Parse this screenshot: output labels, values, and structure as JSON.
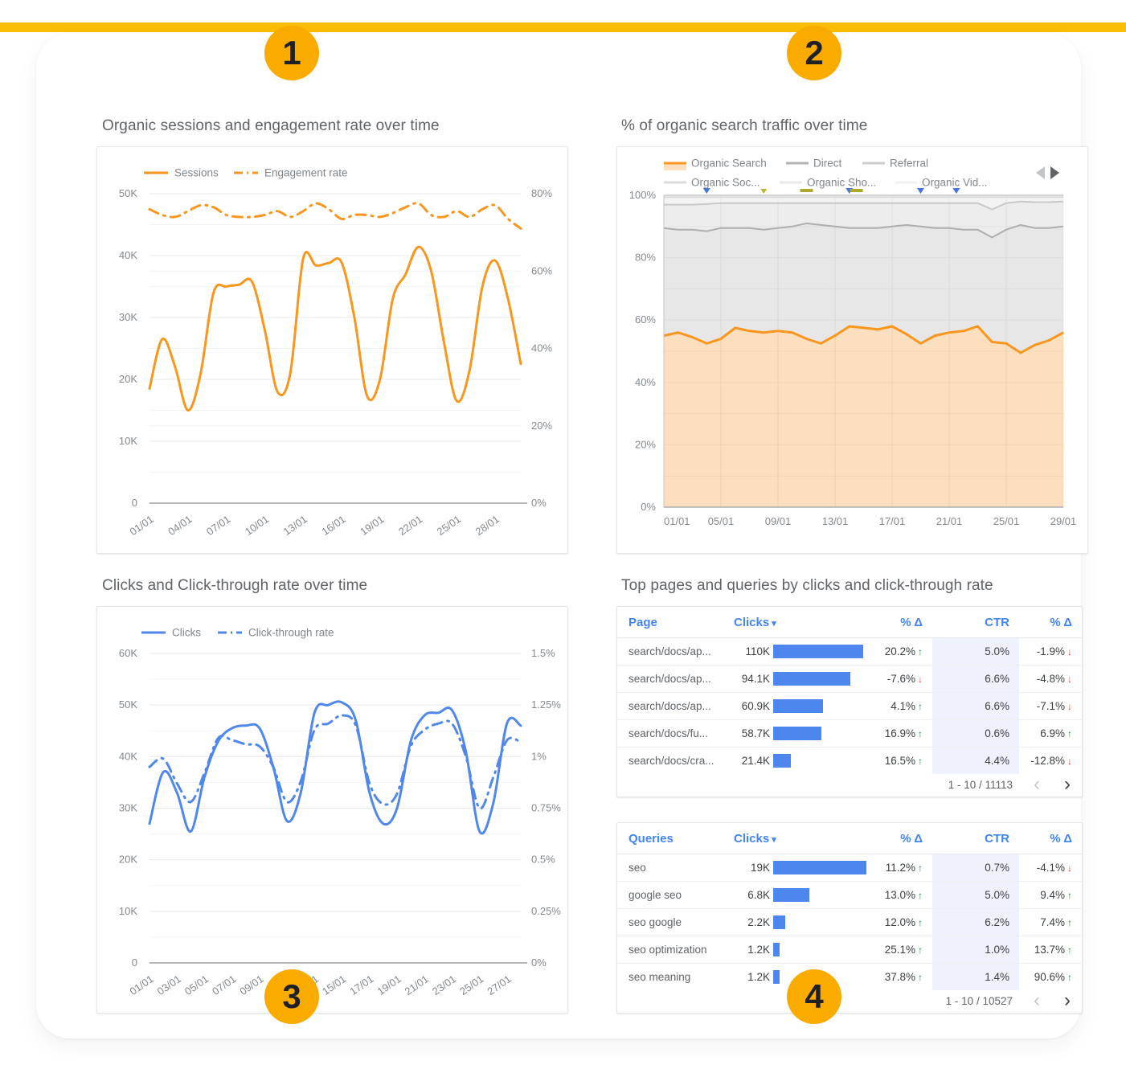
{
  "badges": [
    {
      "label": "1"
    },
    {
      "label": "2"
    },
    {
      "label": "3"
    },
    {
      "label": "4"
    }
  ],
  "colors": {
    "accent_bar": "#FBBC04",
    "badge": "#F9AB00",
    "orange_line": "#F8961D",
    "orange_fill": "#FBDFBE",
    "blue_line": "#4F87EC",
    "table_header_blue": "#4285F4",
    "bar_blue": "#4D86EC",
    "up_green": "#1E8E3E",
    "down_red": "#E8453C",
    "ctr_column_bg": "#EDF2FC"
  },
  "chart_data": [
    {
      "type": "line",
      "title": "Organic sessions and engagement rate over time",
      "color": "#F8961D",
      "x_count": 30,
      "x_tick_labels": [
        "01/01",
        "04/01",
        "07/01",
        "10/01",
        "13/01",
        "16/01",
        "19/01",
        "22/01",
        "25/01",
        "28/01"
      ],
      "y_left_ticks": [
        "50K",
        "40K",
        "30K",
        "20K",
        "10K",
        "0"
      ],
      "y_left_max": 50000,
      "y_right_ticks": [
        "80%",
        "60%",
        "40%",
        "20%",
        "0%"
      ],
      "y_right_max": 80,
      "series": [
        {
          "name": "Sessions",
          "dash": "solid",
          "axis": "left",
          "values": [
            18500,
            26500,
            22000,
            15000,
            21000,
            34000,
            35000,
            35300,
            35800,
            28000,
            18000,
            21000,
            39500,
            38400,
            38800,
            38900,
            30000,
            17300,
            20000,
            33000,
            37000,
            41400,
            37500,
            26000,
            16500,
            21500,
            35000,
            39200,
            33000,
            22500
          ]
        },
        {
          "name": "Engagement rate",
          "dash": "dashdot",
          "axis": "right",
          "values": [
            76,
            74.5,
            74,
            75.5,
            77,
            76.5,
            74.5,
            74,
            74,
            74.5,
            75.5,
            74,
            75.5,
            77.5,
            76,
            73.5,
            74.5,
            74.5,
            74,
            75,
            76.5,
            77.5,
            74.5,
            74,
            75.5,
            74,
            76,
            77,
            73.5,
            71
          ]
        }
      ]
    },
    {
      "type": "stacked_area_percent",
      "title": "% of organic search traffic over time",
      "legend": [
        {
          "name": "Organic Search",
          "color": "#F8961D",
          "fill": "#FBDFBE"
        },
        {
          "name": "Direct",
          "color": "#B3B3B3"
        },
        {
          "name": "Referral",
          "color": "#CDCDCD"
        },
        {
          "name": "Organic Soc...",
          "color": "#DCDCDC"
        },
        {
          "name": "Organic Sho...",
          "color": "#E9E9E9"
        },
        {
          "name": "Organic Vid...",
          "color": "#F0F0F0"
        }
      ],
      "x_count": 29,
      "x_tick_labels": [
        "01/01",
        "05/01",
        "09/01",
        "13/01",
        "17/01",
        "21/01",
        "25/01",
        "29/01"
      ],
      "y_ticks": [
        "100%",
        "80%",
        "60%",
        "40%",
        "20%",
        "0%"
      ],
      "organic_search_pct": [
        55,
        56,
        54.5,
        52.5,
        54,
        57.5,
        56.5,
        56,
        56.5,
        56,
        54,
        52.5,
        55,
        58,
        57.5,
        57,
        58,
        55.5,
        52.5,
        55,
        56,
        56.5,
        58,
        53,
        52.5,
        49.5,
        52,
        53.5,
        56
      ],
      "direct_cum_pct": [
        89.5,
        89,
        89,
        88.5,
        89.5,
        89.5,
        89.5,
        89,
        89.5,
        90,
        91,
        90.5,
        90,
        89.5,
        89.5,
        89.5,
        90,
        90.5,
        90,
        89.5,
        89.5,
        89,
        89,
        86.5,
        89,
        90.5,
        89.5,
        89.5,
        90
      ],
      "referral_cum_pct": [
        97,
        97,
        97,
        97.2,
        97.5,
        97.5,
        97.5,
        97.5,
        97.5,
        97.5,
        97.5,
        97.5,
        97.5,
        97.5,
        97.5,
        97.5,
        97.5,
        97.5,
        97.5,
        97.5,
        97.5,
        97.5,
        97.5,
        95.5,
        97.5,
        98,
        97.8,
        97.8,
        98
      ],
      "social_cum_pct": 99.4,
      "annotations": {
        "blue_flag_days": [
          4,
          14,
          19,
          21.5
        ],
        "olive_flag_days": [
          8
        ],
        "olive_dash_days": [
          11,
          14.5
        ]
      }
    },
    {
      "type": "line",
      "title": "Clicks and Click-through rate over time",
      "color": "#4F87EC",
      "x_count": 28,
      "x_tick_labels": [
        "01/01",
        "03/01",
        "05/01",
        "07/01",
        "09/01",
        "11/01",
        "13/01",
        "15/01",
        "17/01",
        "19/01",
        "21/01",
        "23/01",
        "25/01",
        "27/01"
      ],
      "y_left_ticks": [
        "60K",
        "50K",
        "40K",
        "30K",
        "20K",
        "10K",
        "0"
      ],
      "y_left_max": 60000,
      "y_right_ticks": [
        "1.5%",
        "1.25%",
        "1%",
        "0.75%",
        "0.5%",
        "0.25%",
        "0%"
      ],
      "y_right_max": 1.5,
      "series": [
        {
          "name": "Clicks",
          "dash": "solid",
          "axis": "left",
          "values": [
            27000,
            37000,
            33000,
            25500,
            36000,
            43000,
            45500,
            46000,
            45500,
            38000,
            27500,
            33000,
            48500,
            50000,
            50500,
            47000,
            33000,
            27000,
            30000,
            43000,
            48000,
            48500,
            49000,
            41000,
            25500,
            31000,
            46500,
            46000
          ]
        },
        {
          "name": "Click-through rate",
          "dash": "dashdot",
          "axis": "right",
          "values": [
            0.95,
            0.99,
            0.87,
            0.78,
            0.92,
            1.09,
            1.08,
            1.06,
            1.05,
            0.95,
            0.78,
            0.88,
            1.13,
            1.16,
            1.2,
            1.15,
            0.87,
            0.77,
            0.82,
            1.05,
            1.13,
            1.16,
            1.16,
            1.0,
            0.75,
            0.9,
            1.08,
            1.07
          ]
        }
      ]
    },
    {
      "type": "table",
      "title": "Top pages and queries by clicks and click-through rate",
      "columns": [
        "Page",
        "Clicks",
        "% Δ",
        "CTR",
        "% Δ"
      ],
      "sort_icon": "▾",
      "arrow_up": "↑",
      "arrow_down": "↓",
      "max_clicks": 110000,
      "rows": [
        {
          "label": "search/docs/ap...",
          "clicks": "110K",
          "clicks_value": 110000,
          "delta": "20.2%",
          "delta_dir": "up",
          "ctr": "5.0%",
          "ctr_delta": "-1.9%",
          "ctr_delta_dir": "down"
        },
        {
          "label": "search/docs/ap...",
          "clicks": "94.1K",
          "clicks_value": 94100,
          "delta": "-7.6%",
          "delta_dir": "down",
          "ctr": "6.6%",
          "ctr_delta": "-4.8%",
          "ctr_delta_dir": "down"
        },
        {
          "label": "search/docs/ap...",
          "clicks": "60.9K",
          "clicks_value": 60900,
          "delta": "4.1%",
          "delta_dir": "up",
          "ctr": "6.6%",
          "ctr_delta": "-7.1%",
          "ctr_delta_dir": "down"
        },
        {
          "label": "search/docs/fu...",
          "clicks": "58.7K",
          "clicks_value": 58700,
          "delta": "16.9%",
          "delta_dir": "up",
          "ctr": "0.6%",
          "ctr_delta": "6.9%",
          "ctr_delta_dir": "up"
        },
        {
          "label": "search/docs/cra...",
          "clicks": "21.4K",
          "clicks_value": 21400,
          "delta": "16.5%",
          "delta_dir": "up",
          "ctr": "4.4%",
          "ctr_delta": "-12.8%",
          "ctr_delta_dir": "down"
        }
      ],
      "pagination": "1 - 10 / 11113",
      "prev_icon": "‹",
      "next_icon": "›"
    },
    {
      "type": "table",
      "columns": [
        "Queries",
        "Clicks",
        "% Δ",
        "CTR",
        "% Δ"
      ],
      "sort_icon": "▾",
      "arrow_up": "↑",
      "arrow_down": "↓",
      "max_clicks": 19000,
      "rows": [
        {
          "label": "seo",
          "clicks": "19K",
          "clicks_value": 19000,
          "delta": "11.2%",
          "delta_dir": "up",
          "ctr": "0.7%",
          "ctr_delta": "-4.1%",
          "ctr_delta_dir": "down"
        },
        {
          "label": "google seo",
          "clicks": "6.8K",
          "clicks_value": 6800,
          "delta": "13.0%",
          "delta_dir": "up",
          "ctr": "5.0%",
          "ctr_delta": "9.4%",
          "ctr_delta_dir": "up"
        },
        {
          "label": "seo google",
          "clicks": "2.2K",
          "clicks_value": 2200,
          "delta": "12.0%",
          "delta_dir": "up",
          "ctr": "6.2%",
          "ctr_delta": "7.4%",
          "ctr_delta_dir": "up"
        },
        {
          "label": "seo optimization",
          "clicks": "1.2K",
          "clicks_value": 1200,
          "delta": "25.1%",
          "delta_dir": "up",
          "ctr": "1.0%",
          "ctr_delta": "13.7%",
          "ctr_delta_dir": "up"
        },
        {
          "label": "seo meaning",
          "clicks": "1.2K",
          "clicks_value": 1200,
          "delta": "37.8%",
          "delta_dir": "up",
          "ctr": "1.4%",
          "ctr_delta": "90.6%",
          "ctr_delta_dir": "up"
        }
      ],
      "pagination": "1 - 10 / 10527",
      "prev_icon": "‹",
      "next_icon": "›"
    }
  ]
}
